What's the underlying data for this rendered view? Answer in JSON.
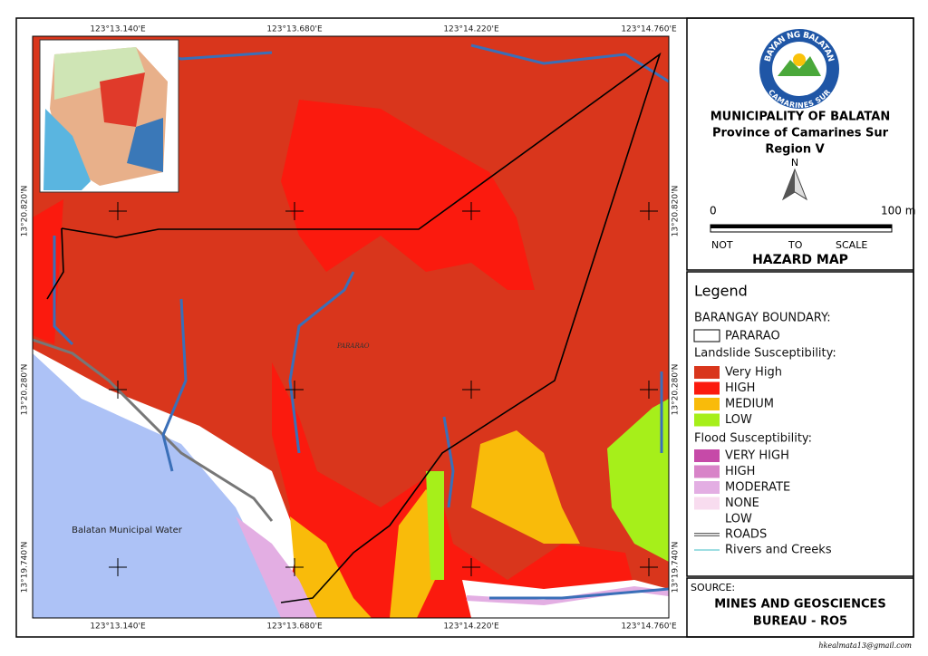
{
  "map": {
    "lon_labels": [
      "123°13.140'E",
      "123°13.680'E",
      "123°14.220'E",
      "123°14.760'E"
    ],
    "lat_labels": [
      "13°20.820'N",
      "13°20.280'N",
      "13°19.740'N"
    ],
    "area_label": "PARARAO",
    "water_label": "Balatan Municipal Water"
  },
  "seal": {
    "top": "BAYAN NG BALATAN",
    "bottom": "CAMARINES SUR"
  },
  "title_block": {
    "municipality": "MUNICIPALITY OF BALATAN",
    "province": "Province of Camarines Sur",
    "region": "Region V",
    "north": "N",
    "scale_start": "0",
    "scale_end": "100 m",
    "scale_note": [
      "NOT",
      "TO",
      "SCALE"
    ],
    "map_title": "HAZARD MAP"
  },
  "legend": {
    "title": "Legend",
    "boundary_heading": "BARANGAY BOUNDARY:",
    "boundary_item": "PARARAO",
    "landslide_heading": "Landslide Susceptibility:",
    "landslide": [
      {
        "label": "Very High",
        "color": "#d9361c"
      },
      {
        "label": "HIGH",
        "color": "#fb1a0e"
      },
      {
        "label": "MEDIUM",
        "color": "#f9bb0a"
      },
      {
        "label": "LOW",
        "color": "#a6ef1a"
      }
    ],
    "flood_heading": "Flood Susceptibility:",
    "flood": [
      {
        "label": "VERY HIGH",
        "color": "#c64aa8"
      },
      {
        "label": "HIGH",
        "color": "#d883c8"
      },
      {
        "label": "MODERATE",
        "color": "#e3aee3"
      },
      {
        "label": "NONE",
        "color": "#f8dcef"
      },
      {
        "label": "LOW",
        "color": "#ffffff"
      }
    ],
    "roads": "ROADS",
    "rivers": "Rivers and Creeks"
  },
  "source": {
    "heading": "SOURCE:",
    "lines": [
      "MINES AND GEOSCIENCES",
      "BUREAU - RO5"
    ]
  },
  "footer": "hkealmata13@gmail.com"
}
